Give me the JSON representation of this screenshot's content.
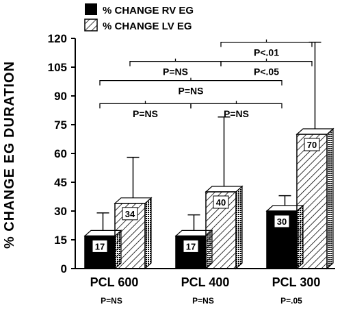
{
  "chart_data": {
    "type": "bar",
    "title": "",
    "xlabel": "",
    "ylabel": "% CHANGE EG DURATION",
    "ylim": [
      0,
      120
    ],
    "yticks": [
      0,
      15,
      30,
      45,
      60,
      75,
      90,
      105,
      120
    ],
    "grid": false,
    "legend_position": "top-center",
    "categories": [
      "PCL 600",
      "PCL 400",
      "PCL 300"
    ],
    "category_significance": [
      "P=NS",
      "P=NS",
      "P=.05"
    ],
    "series": [
      {
        "name": "% CHANGE RV EG",
        "values": [
          17,
          17,
          30
        ],
        "error": [
          12,
          11,
          8
        ],
        "fill": "solid"
      },
      {
        "name": "% CHANGE LV EG",
        "values": [
          34,
          40,
          70
        ],
        "error": [
          24,
          39,
          48
        ],
        "fill": "hatched"
      }
    ],
    "value_labels": [
      "17",
      "34",
      "17",
      "40",
      "30",
      "70"
    ],
    "annotations": [
      {
        "text": "P<.01",
        "from_category": 1,
        "to_category": 2,
        "series": "% CHANGE LV EG",
        "level": 118
      },
      {
        "text": "P=NS",
        "from_category": 0,
        "to_category": 1,
        "series": "% CHANGE LV EG",
        "level": 108
      },
      {
        "text": "P<.05",
        "from_category": 1,
        "to_category": 2,
        "series": "% CHANGE LV EG",
        "level": 108
      },
      {
        "text": "P=NS",
        "from_category": 0,
        "to_category": 2,
        "series": "% CHANGE RV EG",
        "level": 98
      },
      {
        "text": "P=NS",
        "from_category": 0,
        "to_category": 1,
        "series": "% CHANGE RV EG",
        "level": 86
      },
      {
        "text": "P=NS",
        "from_category": 1,
        "to_category": 2,
        "series": "% CHANGE RV EG",
        "level": 86
      }
    ]
  },
  "colors": {
    "rv_fill": "#000000",
    "lv_fill": "#ffffff",
    "hatch": "#000000",
    "side_face": "#3a3a3a",
    "top_face": "#ffffff"
  }
}
